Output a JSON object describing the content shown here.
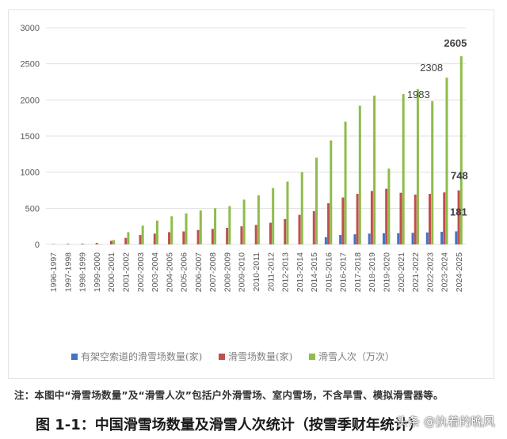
{
  "chart_data": {
    "type": "bar",
    "title": "图 1-1：中国滑雪场数量及滑雪人次统计（按雪季财年统计）",
    "xlabel": "",
    "ylabel": "",
    "ylim": [
      0,
      3000
    ],
    "yticks": [
      0,
      500,
      1000,
      1500,
      2000,
      2500,
      3000
    ],
    "grid": true,
    "legend_position": "bottom",
    "categories": [
      "1996-1997",
      "1997-1998",
      "1998-1999",
      "1999-2000",
      "2000-2001",
      "2001-2002",
      "2002-2003",
      "2003-2004",
      "2004-2005",
      "2005-2006",
      "2006-2007",
      "2007-2008",
      "2008-2009",
      "2009-2010",
      "2010-2011",
      "2011-2012",
      "2012-2013",
      "2013-2014",
      "2014-2015",
      "2015-2016",
      "2016-2017",
      "2017-2018",
      "2018-2019",
      "2019-2020",
      "2020-2021",
      "2021-2022",
      "2022-2023",
      "2023-2024",
      "2024-2025"
    ],
    "series": [
      {
        "name": "有架空索道的滑雪场数量(家)",
        "color": "#4472c4",
        "values": [
          0,
          0,
          0,
          0,
          0,
          0,
          0,
          0,
          0,
          0,
          0,
          0,
          0,
          0,
          0,
          0,
          0,
          0,
          0,
          100,
          130,
          140,
          150,
          155,
          155,
          160,
          165,
          175,
          181
        ]
      },
      {
        "name": "滑雪场数量(家)",
        "color": "#c0504d",
        "values": [
          5,
          8,
          10,
          20,
          50,
          90,
          130,
          150,
          170,
          180,
          200,
          215,
          230,
          250,
          270,
          300,
          350,
          410,
          460,
          570,
          650,
          700,
          740,
          770,
          715,
          690,
          700,
          720,
          748
        ]
      },
      {
        "name": "滑雪人次（万次）",
        "color": "#8fbc4a",
        "values": [
          1,
          2,
          3,
          5,
          60,
          170,
          260,
          330,
          390,
          430,
          470,
          500,
          530,
          620,
          680,
          780,
          870,
          1000,
          1200,
          1440,
          1700,
          1920,
          2060,
          1050,
          2080,
          2150,
          1983,
          2308,
          2605
        ]
      }
    ],
    "annotations": [
      {
        "series": "滑雪人次（万次）",
        "category": "2022-2023",
        "label": "1983"
      },
      {
        "series": "滑雪人次（万次）",
        "category": "2023-2024",
        "label": "2308"
      },
      {
        "series": "滑雪人次（万次）",
        "category": "2024-2025",
        "label": "2605"
      },
      {
        "series": "滑雪场数量(家)",
        "category": "2024-2025",
        "label": "748"
      },
      {
        "series": "有架空索道的滑雪场数量(家)",
        "category": "2024-2025",
        "label": "181"
      }
    ]
  },
  "legend": [
    {
      "label": "有架空索道的滑雪场数量(家)",
      "color": "#4472c4"
    },
    {
      "label": "滑雪场数量(家)",
      "color": "#c0504d"
    },
    {
      "label": "滑雪人次（万次）",
      "color": "#8fbc4a"
    }
  ],
  "note": "注：本图中“滑雪场数量”及“滑雪人次”包括户外滑雪场、室内雪场，不含旱雪、模拟滑雪器等。",
  "caption": "图 1-1：中国滑雪场数量及滑雪人次统计（按雪季财年统计）",
  "watermark": "头条 @执着的晚风"
}
